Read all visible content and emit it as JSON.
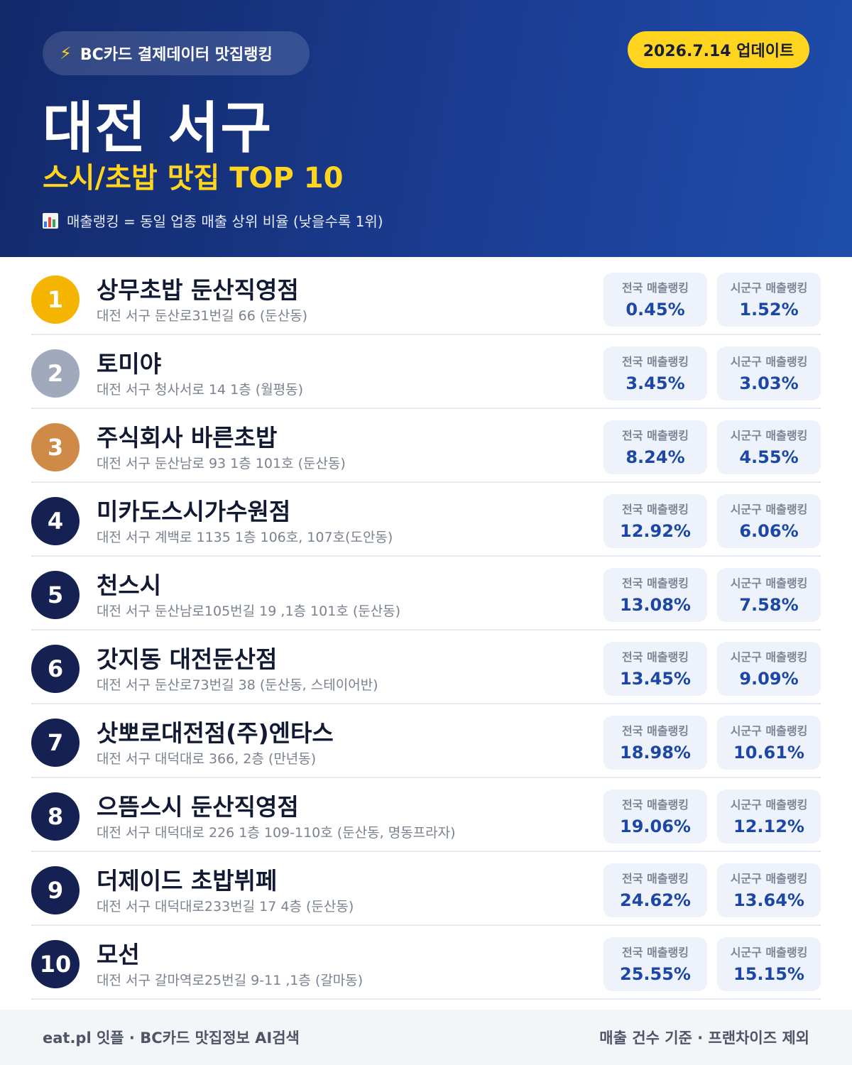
{
  "header": {
    "source_label": "BC카드 결제데이터 맛집랭킹",
    "update_label": "2026.7.14 업데이트",
    "title": "대전 서구",
    "subtitle": "스시/초밥 맛집 TOP 10",
    "note": "매출랭킹 = 동일 업종 매출 상위 비율 (낮을수록 1위)",
    "icons": {
      "source": "lightning-icon",
      "note": "bar-chart-icon"
    },
    "colors": {
      "header_bg": "#1a3c91",
      "accent": "#ffd51f",
      "gold": "#f5b400",
      "silver": "#a1aabd",
      "bronze": "#cf8a47",
      "rank_default": "#142152",
      "value": "#1d47a6"
    }
  },
  "labels": {
    "national": "전국 매출랭킹",
    "district": "시군구 매출랭킹"
  },
  "rows": [
    {
      "rank": "1",
      "name": "상무초밥 둔산직영점",
      "address": "대전 서구 둔산로31번길 66 (둔산동)",
      "national": "0.45%",
      "district": "1.52%"
    },
    {
      "rank": "2",
      "name": "토미야",
      "address": "대전 서구 청사서로 14 1층 (월평동)",
      "national": "3.45%",
      "district": "3.03%"
    },
    {
      "rank": "3",
      "name": "주식회사 바른초밥",
      "address": "대전 서구 둔산남로 93 1층 101호 (둔산동)",
      "national": "8.24%",
      "district": "4.55%"
    },
    {
      "rank": "4",
      "name": "미카도스시가수원점",
      "address": "대전 서구 계백로 1135 1층 106호, 107호(도안동)",
      "national": "12.92%",
      "district": "6.06%"
    },
    {
      "rank": "5",
      "name": "천스시",
      "address": "대전 서구 둔산남로105번길 19 ,1층 101호 (둔산동)",
      "national": "13.08%",
      "district": "7.58%"
    },
    {
      "rank": "6",
      "name": "갓지동 대전둔산점",
      "address": "대전 서구 둔산로73번길 38 (둔산동, 스테이어반)",
      "national": "13.45%",
      "district": "9.09%"
    },
    {
      "rank": "7",
      "name": "삿뽀로대전점(주)엔타스",
      "address": "대전 서구 대덕대로 366, 2층 (만년동)",
      "national": "18.98%",
      "district": "10.61%"
    },
    {
      "rank": "8",
      "name": "으뜸스시 둔산직영점",
      "address": "대전 서구 대덕대로 226 1층 109-110호 (둔산동, 명동프라자)",
      "national": "19.06%",
      "district": "12.12%"
    },
    {
      "rank": "9",
      "name": "더제이드 초밥뷔페",
      "address": "대전 서구 대덕대로233번길 17 4층 (둔산동)",
      "national": "24.62%",
      "district": "13.64%"
    },
    {
      "rank": "10",
      "name": "모선",
      "address": "대전 서구 갈마역로25번길 9-11 ,1층 (갈마동)",
      "national": "25.55%",
      "district": "15.15%"
    }
  ],
  "footer": {
    "left": "eat.pl 잇플 · BC카드 맛집정보 AI검색",
    "right": "매출 건수 기준 · 프랜차이즈 제외"
  }
}
